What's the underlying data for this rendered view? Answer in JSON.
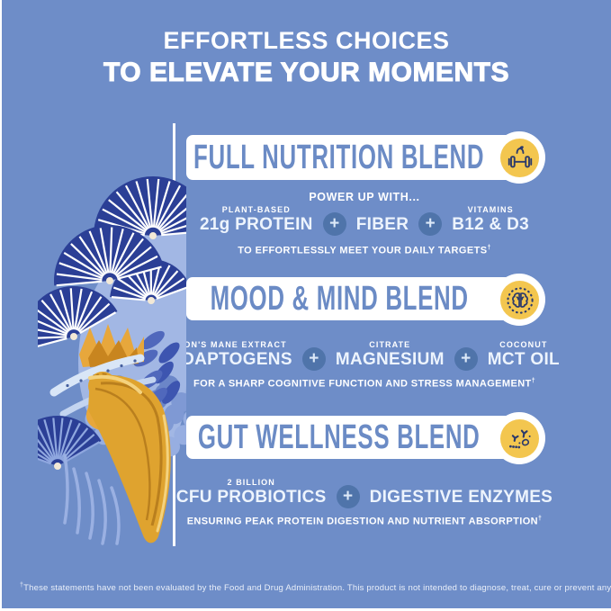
{
  "colors": {
    "background": "#6E8DC8",
    "banner_title_blue": "#6B8BC5",
    "accent_yellow": "#F3C64F",
    "plus_circle_blue": "#4F74AA",
    "text_white": "#FFFFFF"
  },
  "header": {
    "line1": "EFFORTLESS CHOICES",
    "line2": "TO ELEVATE YOUR MOMENTS"
  },
  "plus": "+",
  "dagger": "†",
  "sections": [
    {
      "title": "FULL NUTRITION BLEND",
      "icon": "apple-dumbbell-icon",
      "intro": "POWER UP WITH...",
      "ingredients": [
        {
          "label": "PLANT-BASED",
          "name": "21g PROTEIN"
        },
        {
          "label": "",
          "name": "FIBER"
        },
        {
          "label": "VITAMINS",
          "name": "B12 & D3"
        }
      ],
      "caption": "TO EFFORTLESSLY MEET YOUR DAILY TARGETS"
    },
    {
      "title": "MOOD & MIND BLEND",
      "icon": "brain-icon",
      "ingredients": [
        {
          "label": "LION'S MANE EXTRACT",
          "name": "ADAPTOGENS"
        },
        {
          "label": "CITRATE",
          "name": "MAGNESIUM"
        },
        {
          "label": "COCONUT",
          "name": "MCT OIL"
        }
      ],
      "caption": "FOR A SHARP COGNITIVE FUNCTION AND STRESS MANAGEMENT"
    },
    {
      "title": "GUT WELLNESS BLEND",
      "icon": "probiotics-icon",
      "ingredients": [
        {
          "label": "2 BILLION",
          "name": "CFU PROBIOTICS"
        },
        {
          "label": "",
          "name": "DIGESTIVE ENZYMES"
        }
      ],
      "caption": "ENSURING PEAK PROTEIN DIGESTION AND NUTRIENT ABSORPTION"
    }
  ],
  "footer": {
    "disclaimer": "These statements have not been evaluated by the Food and Drug Administration. This product is not intended to diagnose, treat, cure or prevent any disease."
  }
}
